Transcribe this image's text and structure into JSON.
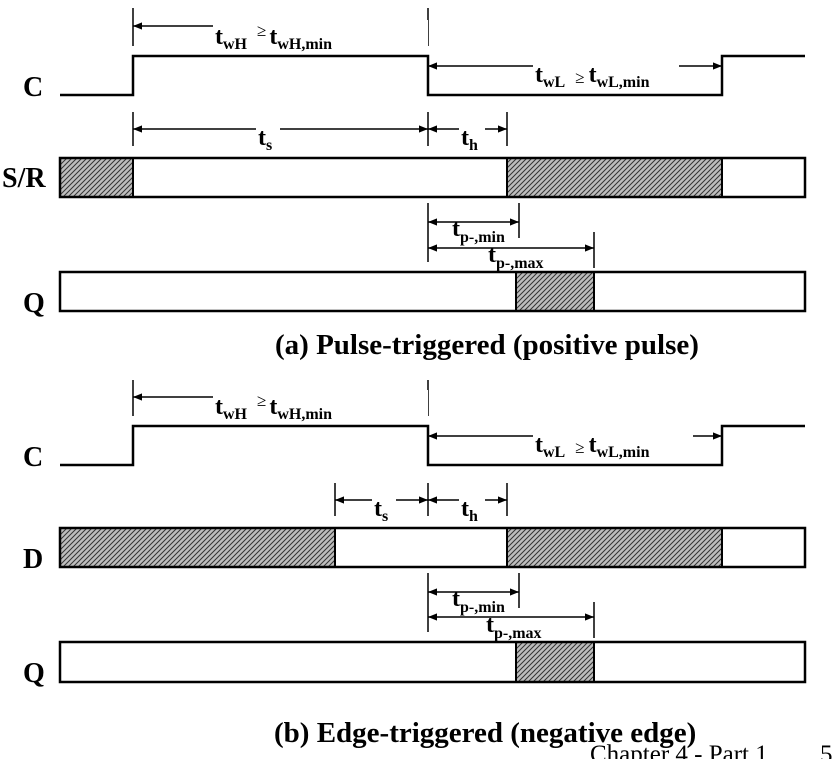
{
  "colors": {
    "ink": "#000000",
    "background": "#ffffff",
    "hatch_fill": "#bdbdbd"
  },
  "panel_a": {
    "caption": "(a) Pulse-triggered (positive pulse)",
    "signals": {
      "clock": "C",
      "input": "S/R",
      "output": "Q"
    },
    "width_high": {
      "sym": "t",
      "sub": "wH",
      "ge": "≥",
      "sym2": "t",
      "sub2": "wH,min"
    },
    "width_low": {
      "sym": "t",
      "sub": "wL",
      "ge": "≥",
      "sym2": "t",
      "sub2": "wL,min"
    },
    "setup": {
      "sym": "t",
      "sub": "s"
    },
    "hold": {
      "sym": "t",
      "sub": "h"
    },
    "prop_min": {
      "sym": "t",
      "sub": "p-,min"
    },
    "prop_max": {
      "sym": "t",
      "sub": "p-,max"
    }
  },
  "panel_b": {
    "caption": "(b) Edge-triggered (negative edge)",
    "signals": {
      "clock": "C",
      "input": "D",
      "output": "Q"
    },
    "width_high": {
      "sym": "t",
      "sub": "wH",
      "ge": "≥",
      "sym2": "t",
      "sub2": "wH,min"
    },
    "width_low": {
      "sym": "t",
      "sub": "wL",
      "ge": "≥",
      "sym2": "t",
      "sub2": "wL,min"
    },
    "setup": {
      "sym": "t",
      "sub": "s"
    },
    "hold": {
      "sym": "t",
      "sub": "h"
    },
    "prop_min": {
      "sym": "t",
      "sub": "p-,min"
    },
    "prop_max": {
      "sym": "t",
      "sub": "p-,max"
    }
  },
  "footer": {
    "chapter": "Chapter 4 - Part 1",
    "page": "5"
  }
}
